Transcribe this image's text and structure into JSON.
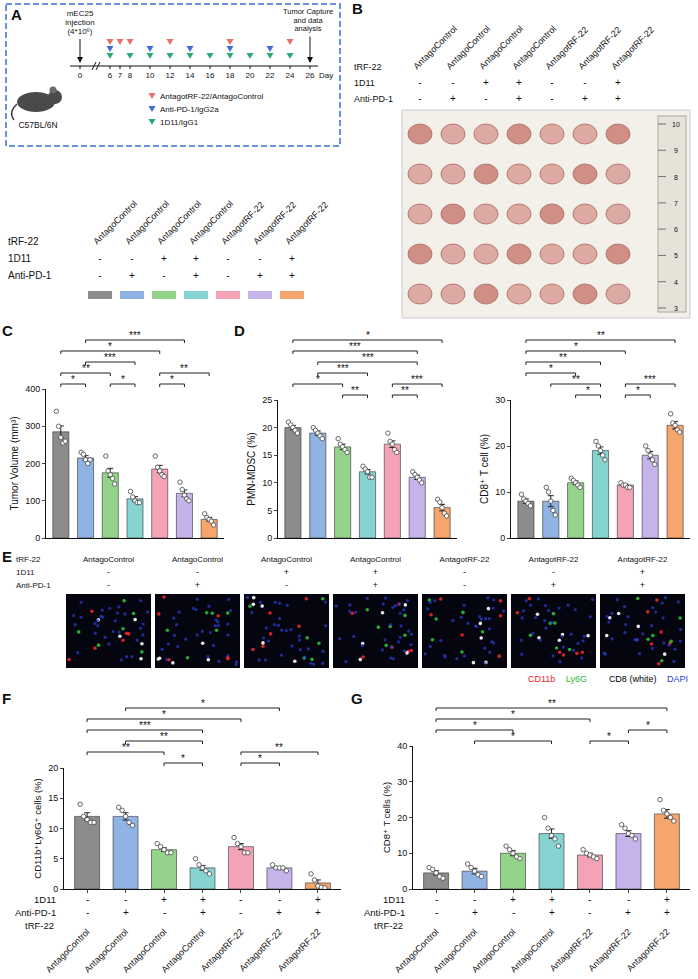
{
  "row_names": [
    "tRF-22",
    "1D11",
    "Anti-PD-1"
  ],
  "groups": [
    {
      "tRF-22": "AntagoControl",
      "1D11": "-",
      "Anti-PD-1": "-",
      "color": "#8c8c8c"
    },
    {
      "tRF-22": "AntagoControl",
      "1D11": "-",
      "Anti-PD-1": "+",
      "color": "#8fb3e3"
    },
    {
      "tRF-22": "AntagoControl",
      "1D11": "+",
      "Anti-PD-1": "-",
      "color": "#93d48a"
    },
    {
      "tRF-22": "AntagoControl",
      "1D11": "+",
      "Anti-PD-1": "+",
      "color": "#86d4d2"
    },
    {
      "tRF-22": "AntagotRF-22",
      "1D11": "-",
      "Anti-PD-1": "-",
      "color": "#f4a3b7"
    },
    {
      "tRF-22": "AntagotRF-22",
      "1D11": "-",
      "Anti-PD-1": "+",
      "color": "#c6b3ea"
    },
    {
      "tRF-22": "AntagotRF-22",
      "1D11": "+",
      "Anti-PD-1": "+",
      "color": "#f6a66c"
    }
  ],
  "schematic": {
    "panel": "A",
    "injection": "mEC25 injection (4*10⁶)",
    "mouse": "C57BL/6N",
    "timeline_ticks": [
      0,
      6,
      7,
      8,
      10,
      12,
      14,
      16,
      18,
      20,
      22,
      24,
      26
    ],
    "axis_label": "Day",
    "endpoint": "Tumor Capture and data analysis",
    "treatments": [
      {
        "name": "AntagotRF-22/AntagoControl",
        "color": "#e8706a",
        "days": [
          6,
          7,
          8,
          12,
          18,
          24
        ]
      },
      {
        "name": "Anti-PD-1/IgG2a",
        "color": "#3f6fd6",
        "days": [
          6,
          10,
          14,
          18,
          22
        ]
      },
      {
        "name": "1D11/IgG1",
        "color": "#2aa876",
        "days": [
          6,
          8,
          10,
          12,
          14,
          16,
          18,
          20,
          22,
          24
        ]
      }
    ]
  },
  "photo": {
    "panel": "B",
    "ruler": [
      10,
      9,
      8,
      7,
      6,
      5,
      4,
      3
    ],
    "tumors_per_group": 5
  },
  "images": {
    "panel": "E",
    "stains": [
      {
        "name": "CD11b",
        "color": "#e8262b"
      },
      {
        "name": "Ly6G",
        "color": "#2ebd3a"
      },
      {
        "name": "CD8 (white)",
        "color": "#000000"
      },
      {
        "name": "DAPI",
        "color": "#2b3fd6"
      }
    ]
  },
  "chart_data": [
    {
      "panel": "C",
      "type": "bar",
      "y_label": "Tumor Volume (mm³)",
      "categories": [
        "AntagoControl",
        "AntagoControl",
        "AntagoControl",
        "AntagoControl",
        "AntagotRF-22",
        "AntagotRF-22",
        "AntagotRF-22"
      ],
      "values": [
        285,
        215,
        175,
        105,
        185,
        120,
        50
      ],
      "errors": [
        16,
        6,
        12,
        6,
        10,
        9,
        5
      ],
      "points": [
        [
          340,
          300,
          270,
          255,
          260
        ],
        [
          230,
          225,
          210,
          200,
          210
        ],
        [
          220,
          180,
          170,
          160,
          145
        ],
        [
          125,
          110,
          100,
          95,
          95
        ],
        [
          220,
          190,
          180,
          170,
          165
        ],
        [
          150,
          130,
          115,
          105,
          100
        ],
        [
          65,
          55,
          50,
          45,
          35
        ]
      ],
      "colors": [
        "#8c8c8c",
        "#8fb3e3",
        "#93d48a",
        "#86d4d2",
        "#f4a3b7",
        "#c6b3ea",
        "#f6a66c"
      ],
      "ylim": [
        0,
        400
      ],
      "yticks": [
        0,
        100,
        200,
        300,
        400
      ],
      "tick_labels": "y",
      "significance": [
        {
          "from": 0,
          "to": 4,
          "label": "*"
        },
        {
          "from": 0,
          "to": 2,
          "label": "**"
        },
        {
          "from": 0,
          "to": 1,
          "label": "*"
        },
        {
          "from": 1,
          "to": 5,
          "label": "***"
        },
        {
          "from": 1,
          "to": 3,
          "label": "***"
        },
        {
          "from": 2,
          "to": 3,
          "label": "*"
        },
        {
          "from": 4,
          "to": 6,
          "label": "**"
        },
        {
          "from": 4,
          "to": 5,
          "label": "*"
        }
      ]
    },
    {
      "panel": "D",
      "type": "bar",
      "y_label": "PMN-MDSC (%)",
      "categories": [
        "AntagoControl",
        "AntagoControl",
        "AntagoControl",
        "AntagoControl",
        "AntagotRF-22",
        "AntagotRF-22",
        "AntagotRF-22"
      ],
      "values": [
        20,
        19,
        16.5,
        12,
        17,
        11,
        5.5
      ],
      "errors": [
        0.4,
        0.4,
        0.5,
        0.4,
        0.6,
        0.4,
        0.6
      ],
      "points": [
        [
          21,
          20.5,
          20,
          19.5,
          19
        ],
        [
          20,
          19.5,
          19,
          18.5,
          18
        ],
        [
          18,
          17,
          16.5,
          16,
          15.5
        ],
        [
          13,
          12.5,
          12,
          11,
          11
        ],
        [
          19,
          17.5,
          17,
          16,
          15.5
        ],
        [
          12,
          11.5,
          11,
          10.5,
          10
        ],
        [
          7,
          6.5,
          5.5,
          4.5,
          4
        ]
      ],
      "colors": [
        "#8c8c8c",
        "#8fb3e3",
        "#93d48a",
        "#86d4d2",
        "#f4a3b7",
        "#c6b3ea",
        "#f6a66c"
      ],
      "ylim": [
        0,
        25
      ],
      "yticks": [
        0,
        5,
        10,
        15,
        20,
        25
      ],
      "tick_labels": "y",
      "significance": [
        {
          "from": 0,
          "to": 6,
          "label": "*"
        },
        {
          "from": 0,
          "to": 5,
          "label": "***"
        },
        {
          "from": 0,
          "to": 2,
          "label": "*"
        },
        {
          "from": 1,
          "to": 5,
          "label": "***"
        },
        {
          "from": 1,
          "to": 3,
          "label": "***"
        },
        {
          "from": 2,
          "to": 3,
          "label": "**"
        },
        {
          "from": 4,
          "to": 6,
          "label": "***"
        },
        {
          "from": 4,
          "to": 5,
          "label": "**"
        }
      ]
    },
    {
      "type": "bar",
      "y_label": "CD8⁺ T cell (%)",
      "categories": [
        "AntagoControl",
        "AntagoControl",
        "AntagoControl",
        "AntagoControl",
        "AntagotRF-22",
        "AntagotRF-22",
        "AntagotRF-22"
      ],
      "values": [
        8,
        8,
        12,
        19,
        11.5,
        18,
        24.5
      ],
      "errors": [
        0.5,
        1.2,
        0.4,
        0.8,
        0.2,
        0.8,
        0.8
      ],
      "points": [
        [
          9.5,
          8.5,
          8,
          7.5,
          7
        ],
        [
          11,
          10,
          8,
          6,
          5
        ],
        [
          13,
          12.5,
          12,
          11.5,
          11
        ],
        [
          21,
          20,
          19,
          18,
          17
        ],
        [
          12,
          11.5,
          11.5,
          11,
          11
        ],
        [
          20,
          19,
          18,
          17,
          16
        ],
        [
          27,
          25,
          24.5,
          23.5,
          23
        ]
      ],
      "colors": [
        "#8c8c8c",
        "#8fb3e3",
        "#93d48a",
        "#86d4d2",
        "#f4a3b7",
        "#c6b3ea",
        "#f6a66c"
      ],
      "ylim": [
        0,
        30
      ],
      "yticks": [
        0,
        10,
        20,
        30
      ],
      "tick_labels": "y",
      "significance": [
        {
          "from": 0,
          "to": 6,
          "label": "**"
        },
        {
          "from": 1,
          "to": 3,
          "label": "**"
        },
        {
          "from": 2,
          "to": 3,
          "label": "*"
        },
        {
          "from": 0,
          "to": 4,
          "label": "*"
        },
        {
          "from": 0,
          "to": 3,
          "label": "**"
        },
        {
          "from": 0,
          "to": 2,
          "label": "*"
        },
        {
          "from": 4,
          "to": 6,
          "label": "***"
        },
        {
          "from": 4,
          "to": 5,
          "label": "*"
        }
      ]
    },
    {
      "panel": "F",
      "type": "bar",
      "y_label": "CD11b⁺Ly6G⁺ cells (%)",
      "categories": [
        "AntagoControl",
        "AntagoControl",
        "AntagoControl",
        "AntagoControl",
        "AntagotRF-22",
        "AntagotRF-22",
        "AntagotRF-22"
      ],
      "values": [
        12,
        12,
        6.5,
        3.5,
        7,
        3.5,
        1
      ],
      "errors": [
        0.6,
        0.6,
        0.3,
        0.4,
        0.5,
        0.2,
        0.5
      ],
      "points": [
        [
          14,
          12,
          11.5,
          11,
          11
        ],
        [
          13.5,
          13,
          12,
          11,
          10.5
        ],
        [
          7.5,
          7,
          6.5,
          6,
          6
        ],
        [
          5,
          4,
          3.5,
          3,
          2.5
        ],
        [
          8.5,
          7.5,
          7,
          6,
          6
        ],
        [
          4,
          3.5,
          3.5,
          3.5,
          3
        ],
        [
          2.5,
          1.5,
          0.5,
          0.3,
          0.2
        ]
      ],
      "colors": [
        "#8c8c8c",
        "#8fb3e3",
        "#93d48a",
        "#86d4d2",
        "#f4a3b7",
        "#c6b3ea",
        "#f6a66c"
      ],
      "ylim": [
        0,
        20
      ],
      "yticks": [
        0,
        5,
        10,
        15,
        20
      ],
      "significance": [
        {
          "from": 0,
          "to": 4,
          "label": "*"
        },
        {
          "from": 0,
          "to": 3,
          "label": "***"
        },
        {
          "from": 0,
          "to": 2,
          "label": "**"
        },
        {
          "from": 1,
          "to": 3,
          "label": "**"
        },
        {
          "from": 1,
          "to": 5,
          "label": "*"
        },
        {
          "from": 2,
          "to": 3,
          "label": "*"
        },
        {
          "from": 4,
          "to": 6,
          "label": "**"
        },
        {
          "from": 4,
          "to": 5,
          "label": "*"
        }
      ]
    },
    {
      "panel": "G",
      "type": "bar",
      "y_label": "CD8⁺ T cells (%)",
      "categories": [
        "AntagoControl",
        "AntagoControl",
        "AntagoControl",
        "AntagoControl",
        "AntagotRF-22",
        "AntagotRF-22",
        "AntagotRF-22"
      ],
      "values": [
        4.5,
        5,
        10,
        15.5,
        9.5,
        15.5,
        21
      ],
      "errors": [
        0.6,
        0.8,
        0.7,
        1.3,
        0.5,
        0.8,
        1.2
      ],
      "points": [
        [
          6,
          5.5,
          4.5,
          3.5,
          3
        ],
        [
          7,
          6,
          5,
          4,
          3.5
        ],
        [
          12,
          11,
          10,
          9,
          8.5
        ],
        [
          20,
          17,
          15,
          14,
          12
        ],
        [
          11,
          10,
          9.5,
          9,
          8.5
        ],
        [
          18,
          17,
          15.5,
          15,
          14
        ],
        [
          25,
          22,
          21,
          20,
          19
        ]
      ],
      "colors": [
        "#8c8c8c",
        "#8fb3e3",
        "#93d48a",
        "#86d4d2",
        "#f4a3b7",
        "#c6b3ea",
        "#f6a66c"
      ],
      "ylim": [
        0,
        40
      ],
      "yticks": [
        0,
        10,
        20,
        30,
        40
      ],
      "significance": [
        {
          "from": 0,
          "to": 6,
          "label": "**"
        },
        {
          "from": 1,
          "to": 3,
          "label": "*"
        },
        {
          "from": 0,
          "to": 4,
          "label": "*"
        },
        {
          "from": 0,
          "to": 2,
          "label": "*"
        },
        {
          "from": 4,
          "to": 5,
          "label": "*"
        },
        {
          "from": 5,
          "to": 6,
          "label": "*"
        }
      ]
    }
  ]
}
